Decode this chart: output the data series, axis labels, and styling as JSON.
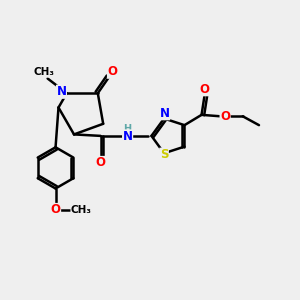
{
  "bg_color": "#efefef",
  "bond_color": "#000000",
  "bond_width": 1.8,
  "atom_colors": {
    "N": "#0000ff",
    "O": "#ff0000",
    "S": "#cccc00",
    "C": "#000000",
    "H": "#5fa8a8"
  },
  "font_size": 8.5,
  "fig_size": [
    3.0,
    3.0
  ],
  "dpi": 100
}
